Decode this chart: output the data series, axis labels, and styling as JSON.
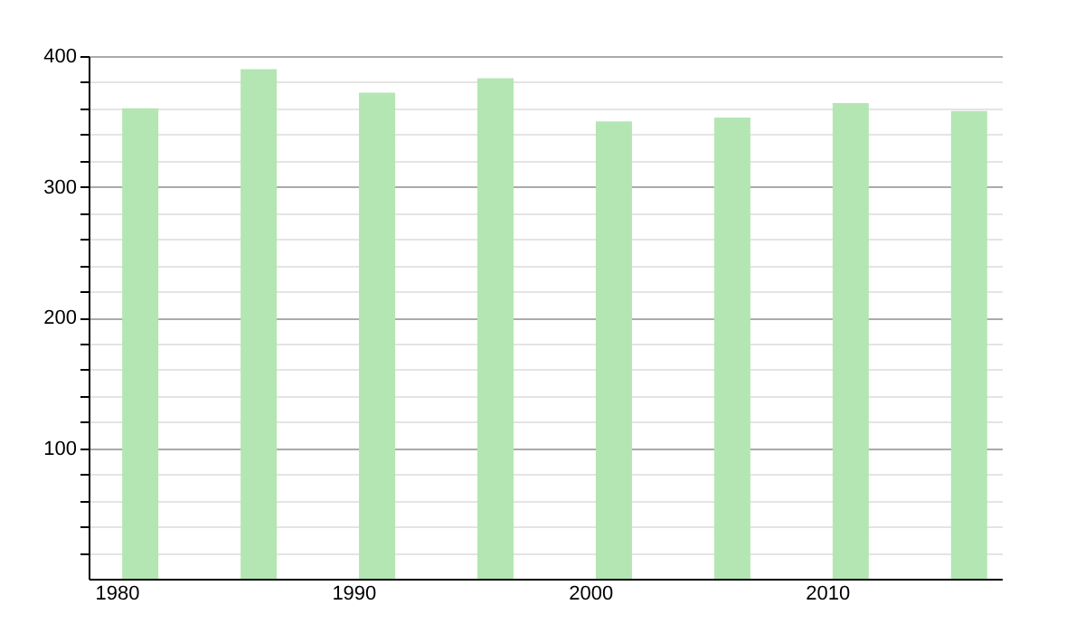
{
  "chart_data": {
    "type": "bar",
    "x": [
      1981,
      1986,
      1991,
      1996,
      2001,
      2006,
      2011,
      2016
    ],
    "values": [
      360,
      390,
      372,
      383,
      350,
      353,
      364,
      358
    ],
    "color": "#b3e6b3",
    "xlim": [
      1979.2,
      2017
    ],
    "xticks": [
      1980,
      1990,
      2000,
      2010
    ],
    "ylim": [
      0,
      400
    ],
    "yticks": [
      {
        "value": 20,
        "label": null
      },
      {
        "value": 40,
        "label": null
      },
      {
        "value": 60,
        "label": null
      },
      {
        "value": 80,
        "label": null
      },
      100,
      {
        "value": 120,
        "label": null
      },
      {
        "value": 140,
        "label": null
      },
      {
        "value": 160,
        "label": null
      },
      {
        "value": 180,
        "label": null
      },
      200,
      {
        "value": 220,
        "label": null
      },
      {
        "value": 240,
        "label": null
      },
      {
        "value": 260,
        "label": null
      },
      {
        "value": 280,
        "label": null
      },
      300,
      {
        "value": 320,
        "label": null
      },
      {
        "value": 340,
        "label": null
      },
      {
        "value": 360,
        "label": null
      },
      {
        "value": 380,
        "label": null
      },
      400
    ],
    "grid": "y"
  }
}
